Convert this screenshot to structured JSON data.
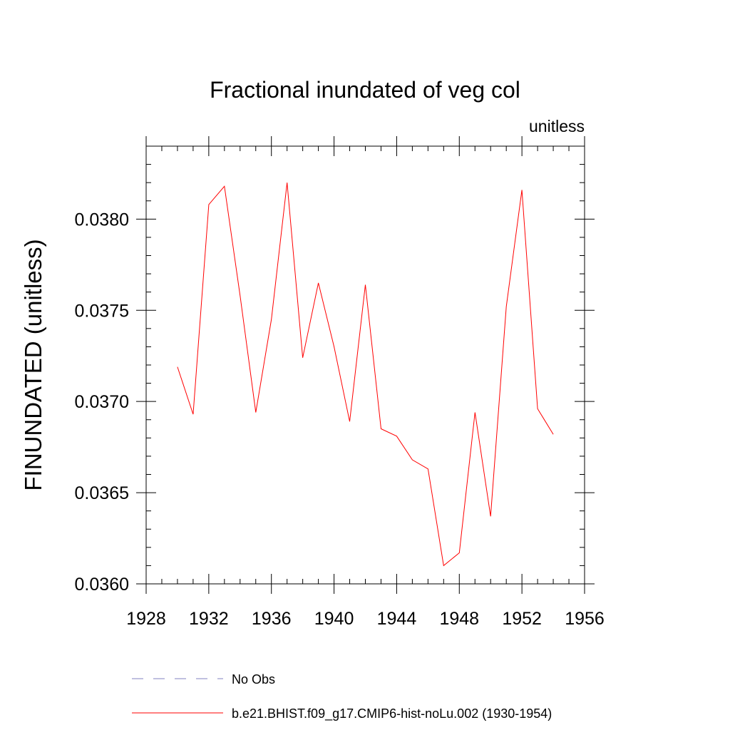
{
  "chart_data": {
    "type": "line",
    "title": "Fractional inundated of veg col",
    "units_label": "unitless",
    "ylabel": "FINUNDATED  (unitless)",
    "xlabel": "",
    "xlim": [
      1928,
      1956
    ],
    "ylim": [
      0.036,
      0.0384
    ],
    "x_ticks": [
      1928,
      1932,
      1936,
      1940,
      1944,
      1948,
      1952,
      1956
    ],
    "x_tick_labels": [
      "1928",
      "1932",
      "1936",
      "1940",
      "1944",
      "1948",
      "1952",
      "1956"
    ],
    "y_ticks": [
      0.036,
      0.0365,
      0.037,
      0.0375,
      0.038
    ],
    "y_tick_labels": [
      "0.0360",
      "0.0365",
      "0.0370",
      "0.0375",
      "0.0380"
    ],
    "grid": false,
    "legend_position": "bottom",
    "series": [
      {
        "name": "b.e21.BHIST.f09_g17.CMIP6-hist-noLu.002 (1930-1954)",
        "color": "#ff0000",
        "dash": "solid",
        "x": [
          1930,
          1931,
          1932,
          1933,
          1934,
          1935,
          1936,
          1937,
          1938,
          1939,
          1940,
          1941,
          1942,
          1943,
          1944,
          1945,
          1946,
          1947,
          1948,
          1949,
          1950,
          1951,
          1952,
          1953,
          1954
        ],
        "y": [
          0.03719,
          0.03693,
          0.03808,
          0.03818,
          0.03758,
          0.03694,
          0.03745,
          0.0382,
          0.03724,
          0.03765,
          0.0373,
          0.03689,
          0.03764,
          0.03685,
          0.03681,
          0.03668,
          0.03663,
          0.0361,
          0.03617,
          0.03694,
          0.03637,
          0.03752,
          0.03816,
          0.03696,
          0.03682
        ]
      }
    ],
    "legend": [
      {
        "label": "No Obs",
        "color": "#8080c0",
        "dash": "dashed"
      },
      {
        "label": "b.e21.BHIST.f09_g17.CMIP6-hist-noLu.002 (1930-1954)",
        "color": "#ff0000",
        "dash": "solid"
      }
    ]
  }
}
